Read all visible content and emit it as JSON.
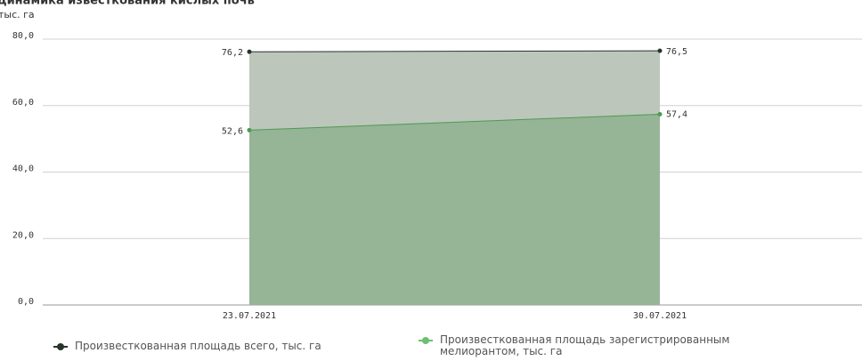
{
  "chart_data": {
    "type": "area",
    "title": "Динамика известкования кислых почв",
    "subtitle": "тыс. га",
    "categories": [
      "23.07.2021",
      "30.07.2021"
    ],
    "series": [
      {
        "name": "Произвесткованная площадь всего, тыс. га",
        "color": "#25352a",
        "fill": "#bcc6bb",
        "values": [
          76.2,
          76.5
        ],
        "value_labels": [
          "76,2",
          "76,5"
        ]
      },
      {
        "name": "Произвесткованная площадь зарегистрированным мелиорантом, тыс. га",
        "color": "#4e9a52",
        "fill": "#95b596",
        "values": [
          52.6,
          57.4
        ],
        "value_labels": [
          "52,6",
          "57,4"
        ]
      }
    ],
    "ylim": [
      0,
      80
    ],
    "yticks": [
      {
        "value": 0,
        "label": "0,0"
      },
      {
        "value": 20,
        "label": "20,0"
      },
      {
        "value": 40,
        "label": "40,0"
      },
      {
        "value": 60,
        "label": "60,0"
      },
      {
        "value": 80,
        "label": "80,0"
      }
    ],
    "grid": true
  }
}
